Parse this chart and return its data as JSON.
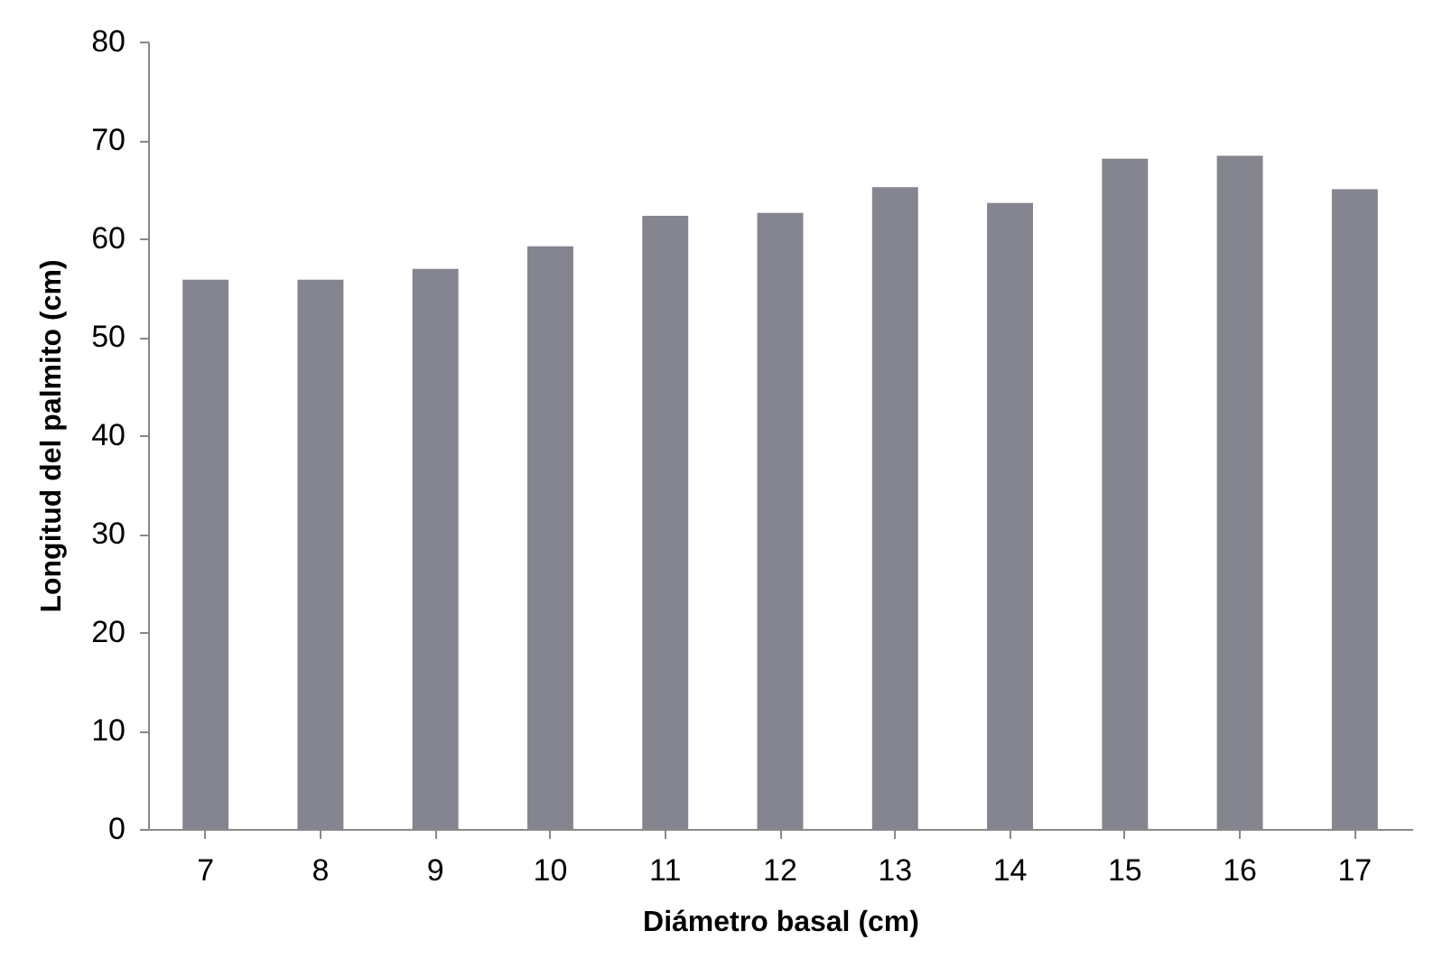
{
  "chart_data": {
    "type": "bar",
    "xlabel": "Diámetro basal (cm)",
    "ylabel": "Longitud del palmito (cm)",
    "categories": [
      "7",
      "8",
      "9",
      "10",
      "11",
      "12",
      "13",
      "14",
      "15",
      "16",
      "17"
    ],
    "values": [
      55.8,
      55.8,
      56.9,
      59.2,
      62.3,
      62.6,
      65.2,
      63.6,
      68.1,
      68.4,
      65.0
    ],
    "color": "#85858f",
    "ylim": [
      0,
      80
    ],
    "yticks": [
      0,
      10,
      20,
      30,
      40,
      50,
      60,
      70,
      80
    ],
    "grid": false
  }
}
